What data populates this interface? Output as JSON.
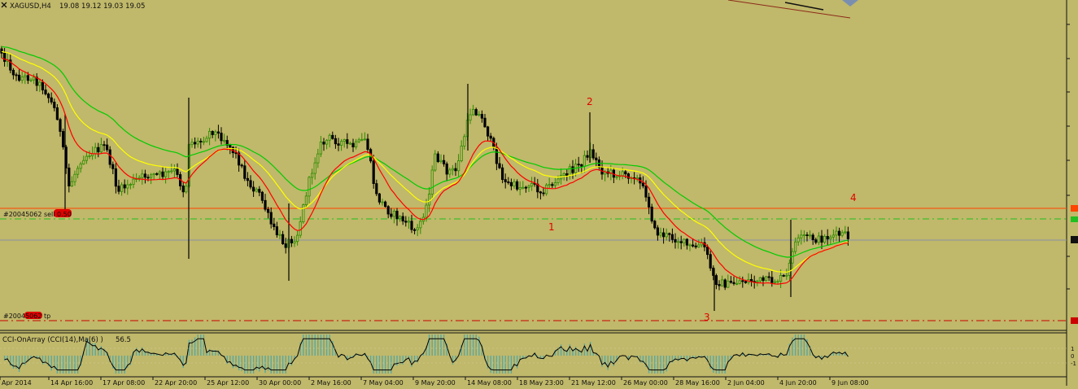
{
  "header": {
    "symbol": "XAGUSD,H4",
    "ohlc": "19.08 19.12 19.03 19.05"
  },
  "wave_labels": [
    "1",
    "2",
    "3",
    "4"
  ],
  "order_labels": {
    "sell": "#20045062 sell 0.50",
    "tp": "#20045062 tp"
  },
  "indicator": {
    "title": "CCI-OnArray (CCI(14),Ma(6) )",
    "value": "56.5",
    "scale": [
      "1",
      "0",
      "-1"
    ]
  },
  "time_axis": [
    "Apr 2014",
    "14 Apr 16:00",
    "17 Apr 08:00",
    "22 Apr 20:00",
    "25 Apr 12:00",
    "30 Apr 00:00",
    "2 May 16:00",
    "7 May 04:00",
    "9 May 20:00",
    "14 May 08:00",
    "18 May 23:00",
    "21 May 12:00",
    "26 May 00:00",
    "28 May 16:00",
    "2 Jun 04:00",
    "4 Jun 20:00",
    "9 Jun 08:00"
  ],
  "colors": {
    "background": "#c0b86a",
    "bull_candle": "#2e8b00",
    "bear_candle": "#000000",
    "ma_green": "#00cc00",
    "ma_yellow": "#ffff00",
    "ma_red": "#ff0000",
    "sell_line": "#ff4500",
    "tp_line": "#cc0000",
    "cci_hist": "#5aa8a0"
  }
}
